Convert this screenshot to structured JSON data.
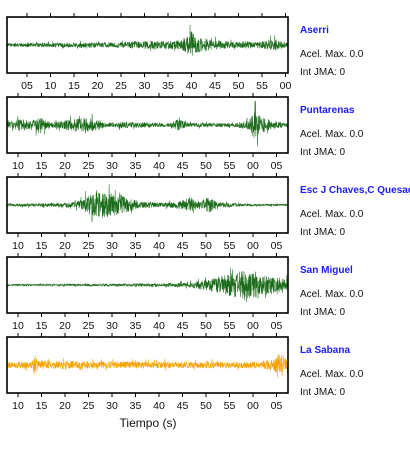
{
  "chart_data": {
    "type": "line",
    "xlabel": "Tiempo (s)",
    "grid": false,
    "waveform_color_default": "#1a6b1a",
    "panels": [
      {
        "station": "Aserri",
        "accel_label": "Acel. Max. 0.0",
        "jma_label": "Int JMA: 0",
        "color": "#1a6b1a",
        "tick_labels": [
          "05",
          "10",
          "15",
          "20",
          "25",
          "30",
          "35",
          "40",
          "45",
          "50",
          "55",
          "00"
        ],
        "envelope": [
          [
            0,
            0.12
          ],
          [
            0.4,
            0.18
          ],
          [
            0.45,
            0.25
          ],
          [
            0.6,
            0.3
          ],
          [
            0.62,
            0.3
          ],
          [
            0.66,
            0.98
          ],
          [
            0.68,
            0.55
          ],
          [
            0.72,
            0.38
          ],
          [
            0.8,
            0.2
          ],
          [
            0.86,
            0.28
          ],
          [
            0.88,
            0.18
          ],
          [
            0.95,
            0.42
          ],
          [
            1,
            0.15
          ]
        ]
      },
      {
        "station": "Puntarenas",
        "accel_label": "Acel. Max. 0.0",
        "jma_label": "Int JMA: 0",
        "color": "#1a6b1a",
        "tick_labels": [
          "10",
          "15",
          "20",
          "25",
          "30",
          "35",
          "40",
          "45",
          "50",
          "55",
          "00",
          "05"
        ],
        "envelope": [
          [
            0,
            0.18
          ],
          [
            0.05,
            0.45
          ],
          [
            0.08,
            0.3
          ],
          [
            0.12,
            0.5
          ],
          [
            0.16,
            0.18
          ],
          [
            0.24,
            0.45
          ],
          [
            0.3,
            0.45
          ],
          [
            0.36,
            0.12
          ],
          [
            0.4,
            0.22
          ],
          [
            0.45,
            0.2
          ],
          [
            0.58,
            0.12
          ],
          [
            0.61,
            0.42
          ],
          [
            0.64,
            0.15
          ],
          [
            0.8,
            0.12
          ],
          [
            0.86,
            0.3
          ],
          [
            0.88,
            0.98
          ],
          [
            0.91,
            0.55
          ],
          [
            0.95,
            0.22
          ],
          [
            1,
            0.15
          ]
        ]
      },
      {
        "station": "Esc J Chaves,C Quesada",
        "accel_label": "Acel. Max. 0.0",
        "jma_label": "Int JMA: 0",
        "color": "#1a6b1a",
        "tick_labels": [
          "10",
          "15",
          "20",
          "25",
          "30",
          "35",
          "40",
          "45",
          "50",
          "55",
          "00",
          "05"
        ],
        "envelope": [
          [
            0,
            0.08
          ],
          [
            0.15,
            0.12
          ],
          [
            0.25,
            0.22
          ],
          [
            0.3,
            0.75
          ],
          [
            0.33,
            0.98
          ],
          [
            0.37,
            0.8
          ],
          [
            0.42,
            0.55
          ],
          [
            0.47,
            0.25
          ],
          [
            0.55,
            0.15
          ],
          [
            0.62,
            0.28
          ],
          [
            0.65,
            0.5
          ],
          [
            0.68,
            0.25
          ],
          [
            0.72,
            0.55
          ],
          [
            0.75,
            0.2
          ],
          [
            0.85,
            0.08
          ],
          [
            1,
            0.06
          ]
        ]
      },
      {
        "station": "San Miguel",
        "accel_label": "Acel. Max. 0.0",
        "jma_label": "Int JMA: 0",
        "color": "#1a6b1a",
        "tick_labels": [
          "10",
          "15",
          "20",
          "25",
          "30",
          "35",
          "40",
          "45",
          "50",
          "55",
          "00",
          "05"
        ],
        "envelope": [
          [
            0,
            0.06
          ],
          [
            0.4,
            0.08
          ],
          [
            0.55,
            0.1
          ],
          [
            0.65,
            0.18
          ],
          [
            0.72,
            0.4
          ],
          [
            0.8,
            0.8
          ],
          [
            0.84,
            0.98
          ],
          [
            0.9,
            0.75
          ],
          [
            0.95,
            0.6
          ],
          [
            1,
            0.5
          ]
        ]
      },
      {
        "station": "La Sabana",
        "accel_label": "Acel. Max. 0.0",
        "jma_label": "Int JMA: 0",
        "color": "#f5a300",
        "tick_labels": [
          "10",
          "15",
          "20",
          "25",
          "30",
          "35",
          "40",
          "45",
          "50",
          "55",
          "00",
          "05"
        ],
        "envelope": [
          [
            0,
            0.2
          ],
          [
            0.09,
            0.28
          ],
          [
            0.1,
            0.85
          ],
          [
            0.11,
            0.3
          ],
          [
            0.3,
            0.25
          ],
          [
            0.5,
            0.22
          ],
          [
            0.7,
            0.22
          ],
          [
            0.9,
            0.25
          ],
          [
            0.95,
            0.4
          ],
          [
            0.97,
            0.98
          ],
          [
            0.98,
            0.8
          ],
          [
            1,
            0.4
          ]
        ]
      }
    ]
  }
}
